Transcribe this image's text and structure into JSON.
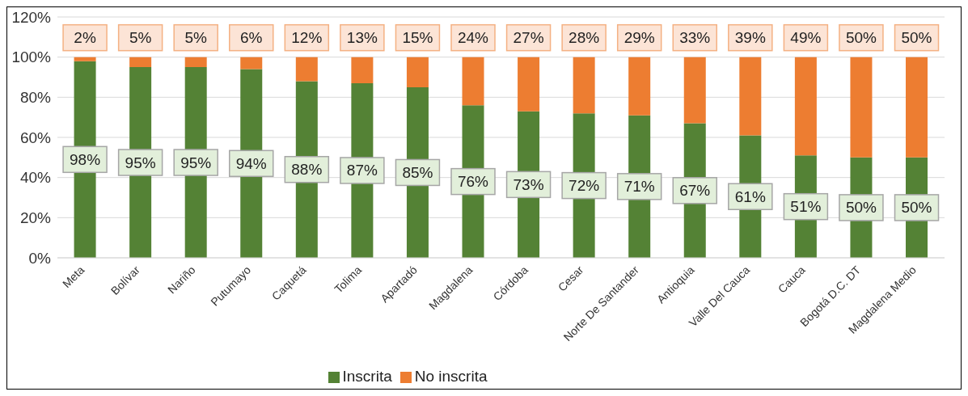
{
  "chart_data": {
    "type": "bar",
    "stacked": true,
    "categories": [
      "Meta",
      "Bolívar",
      "Nariño",
      "Putumayo",
      "Caquetá",
      "Tolima",
      "Apartadó",
      "Magdalena",
      "Córdoba",
      "Cesar",
      "Norte De Santander",
      "Antioquia",
      "Valle Del Cauca",
      "Cauca",
      "Bogotá D.C. DT",
      "Magdalena Medio"
    ],
    "series": [
      {
        "name": "Inscrita",
        "color": "#548235",
        "values": [
          98,
          95,
          95,
          94,
          88,
          87,
          85,
          76,
          73,
          72,
          71,
          67,
          61,
          51,
          50,
          50
        ],
        "value_labels": [
          "98%",
          "95%",
          "95%",
          "94%",
          "88%",
          "87%",
          "85%",
          "76%",
          "73%",
          "72%",
          "71%",
          "67%",
          "61%",
          "51%",
          "50%",
          "50%"
        ]
      },
      {
        "name": "No inscrita",
        "color": "#ed7d31",
        "values": [
          2,
          5,
          5,
          6,
          12,
          13,
          15,
          24,
          27,
          28,
          29,
          33,
          39,
          49,
          50,
          50
        ],
        "value_labels": [
          "2%",
          "5%",
          "5%",
          "6%",
          "12%",
          "13%",
          "15%",
          "24%",
          "27%",
          "28%",
          "29%",
          "33%",
          "39%",
          "49%",
          "50%",
          "50%"
        ]
      }
    ],
    "ylim": [
      0,
      120
    ],
    "yticks": [
      {
        "value": 0,
        "label": "0%"
      },
      {
        "value": 20,
        "label": "20%"
      },
      {
        "value": 40,
        "label": "40%"
      },
      {
        "value": 60,
        "label": "60%"
      },
      {
        "value": 80,
        "label": "80%"
      },
      {
        "value": 100,
        "label": "100%"
      },
      {
        "value": 120,
        "label": "120%"
      }
    ],
    "grid": "y",
    "legend": "bottom"
  }
}
